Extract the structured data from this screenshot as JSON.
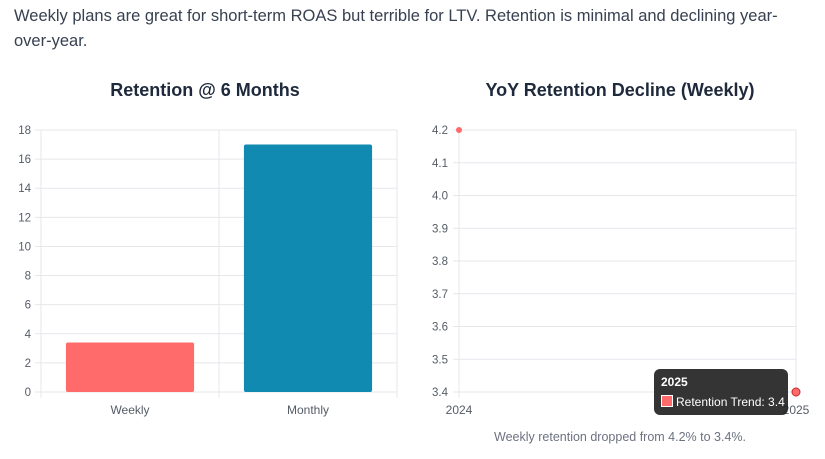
{
  "intro": "Weekly plans are great for short-term ROAS but terrible for LTV. Retention is minimal and declining year-over-year.",
  "colors": {
    "weekly": "#ff6b6b",
    "monthly": "#118ab2",
    "grid": "#e5e7eb",
    "tooltip_bg": "#1e1e1e"
  },
  "chart_data": [
    {
      "type": "bar",
      "title": "Retention @ 6 Months",
      "categories": [
        "Weekly",
        "Monthly"
      ],
      "values": [
        3.4,
        17
      ],
      "ylim": [
        0,
        18
      ],
      "yticks": [
        0,
        2,
        4,
        6,
        8,
        10,
        12,
        14,
        16,
        18
      ],
      "xlabel": "",
      "ylabel": "",
      "grid": true,
      "legend": false
    },
    {
      "type": "line",
      "title": "YoY Retention Decline (Weekly)",
      "x": [
        "2024",
        "2025"
      ],
      "series": [
        {
          "name": "Retention Trend",
          "values": [
            4.2,
            3.4
          ]
        }
      ],
      "ylim": [
        3.4,
        4.2
      ],
      "yticks": [
        "3.4",
        "3.5",
        "3.6",
        "3.7",
        "3.8",
        "3.9",
        "4.0",
        "4.1",
        "4.2"
      ],
      "caption": "Weekly retention dropped from 4.2% to 3.4%.",
      "tooltip": {
        "title": "2025",
        "label": "Retention Trend: 3.4"
      },
      "grid": true,
      "legend": false
    }
  ]
}
